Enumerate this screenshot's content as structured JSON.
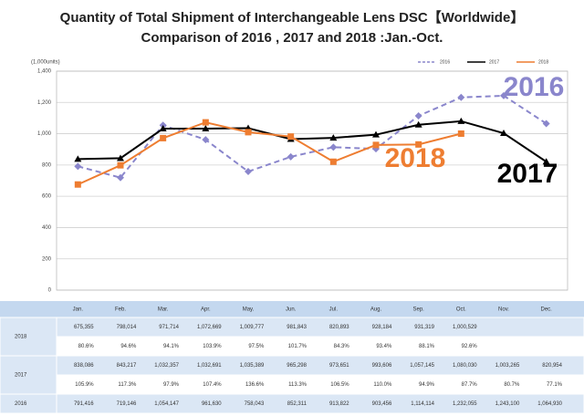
{
  "chart_data": {
    "type": "line",
    "title": "Quantity of Total Shipment of Interchangeable Lens DSC【Worldwide】",
    "subtitle": "Comparison of 2016 , 2017 and 2018 :Jan.-Oct.",
    "y_label": "(1,000units)",
    "categories": [
      "Jan.",
      "Feb.",
      "Mar.",
      "Apr.",
      "May.",
      "Jun.",
      "Jul.",
      "Aug.",
      "Sep.",
      "Oct.",
      "Nov.",
      "Dec."
    ],
    "ylim": [
      0,
      1400
    ],
    "yticks": [
      0,
      200,
      400,
      600,
      800,
      {
        "value": 1000,
        "label": "1,000"
      },
      {
        "value": 1200,
        "label": "1,200"
      },
      {
        "value": 1400,
        "label": "1,400"
      }
    ],
    "grid": true,
    "legend": "top-right",
    "series": [
      {
        "name": "2016",
        "color": "#8a86cc",
        "dashed": true,
        "marker": "diamond",
        "values": [
          791.416,
          719.146,
          1054.147,
          961.63,
          758.043,
          852.311,
          913.822,
          903.456,
          1114.114,
          1232.055,
          1243.1,
          1064.93
        ],
        "value_labels": [
          "791,416",
          "719,146",
          "1,054,147",
          "961,630",
          "758,043",
          "852,311",
          "913,822",
          "903,456",
          "1,114,114",
          "1,232,055",
          "1,243,100",
          "1,064,930"
        ],
        "ratio_labels": []
      },
      {
        "name": "2017",
        "color": "#000000",
        "dashed": false,
        "marker": "triangle",
        "values": [
          838.086,
          843.217,
          1032.357,
          1032.691,
          1035.389,
          965.298,
          973.651,
          993.606,
          1057.145,
          1080.03,
          1003.265,
          820.954
        ],
        "value_labels": [
          "838,086",
          "843,217",
          "1,032,357",
          "1,032,691",
          "1,035,389",
          "965,298",
          "973,651",
          "993,606",
          "1,057,145",
          "1,080,030",
          "1,003,265",
          "820,954"
        ],
        "ratio_labels": [
          "105.9%",
          "117.3%",
          "97.9%",
          "107.4%",
          "136.6%",
          "113.3%",
          "106.5%",
          "110.0%",
          "94.9%",
          "87.7%",
          "80.7%",
          "77.1%"
        ]
      },
      {
        "name": "2018",
        "color": "#ee7d31",
        "dashed": false,
        "marker": "square",
        "values": [
          675.355,
          798.014,
          971.714,
          1072.669,
          1009.777,
          981.843,
          820.893,
          928.184,
          931.319,
          1000.529,
          null,
          null
        ],
        "value_labels": [
          "675,355",
          "798,014",
          "971,714",
          "1,072,669",
          "1,009,777",
          "981,843",
          "820,893",
          "928,184",
          "931,319",
          "1,000,529",
          null,
          null
        ],
        "ratio_labels": [
          "80.6%",
          "94.6%",
          "94.1%",
          "103.9%",
          "97.5%",
          "101.7%",
          "84.3%",
          "93.4%",
          "88.1%",
          "92.6%"
        ]
      }
    ]
  }
}
